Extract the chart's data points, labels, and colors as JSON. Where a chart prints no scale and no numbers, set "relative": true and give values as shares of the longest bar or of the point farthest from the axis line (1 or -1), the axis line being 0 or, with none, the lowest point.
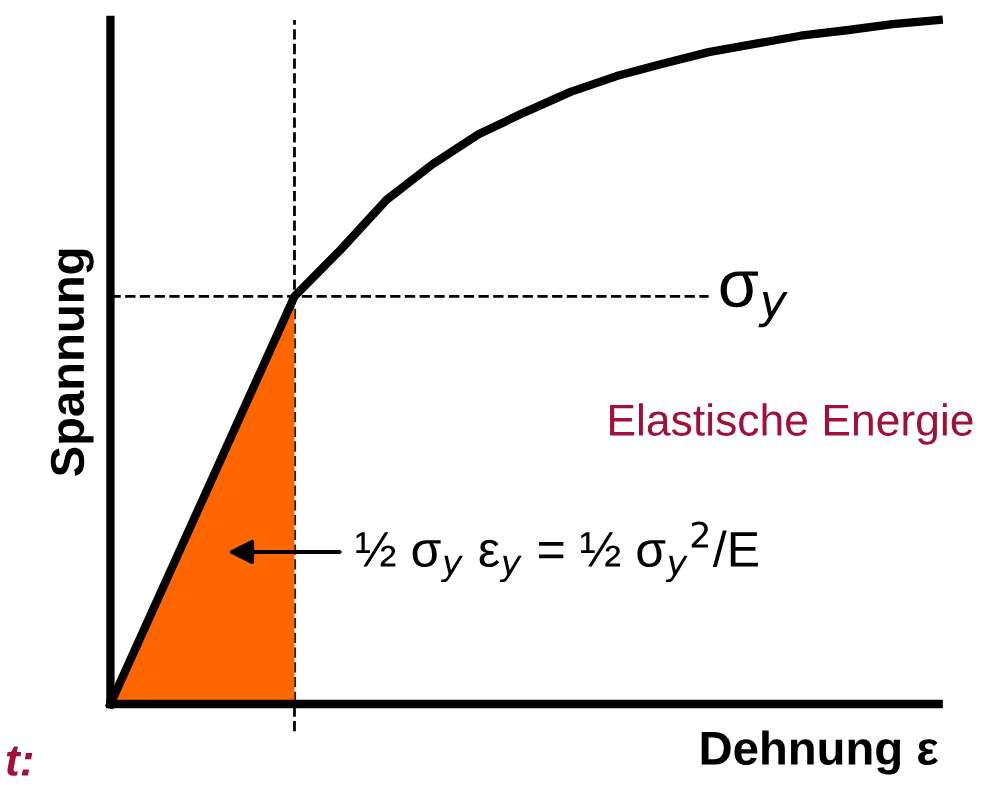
{
  "chart_data": {
    "type": "line",
    "relative": true,
    "xlabel": "Dehnung ε",
    "ylabel": "Spannung",
    "categories": [
      null,
      null,
      null,
      null,
      null,
      null,
      null,
      null,
      null,
      null,
      null,
      null,
      null,
      null,
      null,
      null,
      null,
      null,
      null
    ],
    "series": [
      {
        "type": "area",
        "color": "#ff6600",
        "values": [
          0,
          0.149,
          0.298,
          0.447,
          0.596,
          null,
          null,
          null,
          null,
          null,
          null,
          null,
          null,
          null,
          null,
          null,
          null,
          null,
          null
        ]
      },
      {
        "color": "#000000",
        "values": [
          0,
          0.149,
          0.298,
          0.447,
          0.596,
          0.664,
          0.737,
          0.789,
          0.833,
          0.865,
          0.895,
          0.918,
          0.936,
          0.953,
          0.965,
          0.977,
          0.985,
          0.994,
          1
        ]
      }
    ],
    "ref_lines": [
      {
        "axis": "y",
        "value": 0.596,
        "label": "σ$_{y}$",
        "color": "#000000",
        "line_style": "dashed"
      }
    ],
    "annotations": [
      "Elastische Energie",
      "½ σ$_{y}$ ε$_{y}$ = ½ σ$_{y}$$^{2}$/E",
      "t:"
    ],
    "grid": false,
    "legend": false,
    "marker": "none",
    "line_style": "solid"
  }
}
